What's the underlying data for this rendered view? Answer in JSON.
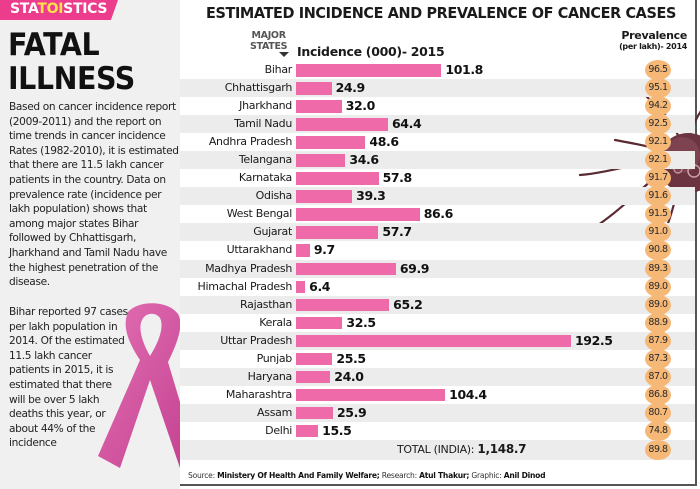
{
  "banner": {
    "pre": "STA",
    "mid": "TOI",
    "post": "STICS"
  },
  "headline": {
    "line1": "FATAL",
    "line2": "ILLNESS"
  },
  "body_text_1": "Based on cancer incidence report (2009-2011) and the report on time trends in cancer incidence Rates (1982-2010), it is estimated that there are 11.5 lakh cancer patients in the country. Data on prevalence rate (incidence per lakh population) shows that among major states Bihar followed by Chhattisgarh, Jharkhand and Tamil Nadu have the highest penetration of the disease.",
  "body_text_2": "Bihar reported 97 cases per lakh population in 2014. Of the estimated 11.5 lakh cancer patients in 2015, it is estimated that there will be over 5 lakh deaths this year, or about 44% of the incidence",
  "colors": {
    "banner": "#ec3c8c",
    "toi": "#ffe14d",
    "bar": "#ef6aa8",
    "prevalence_circle": "#f6b877",
    "stripe": "#ececec"
  },
  "chart_data": {
    "type": "bar",
    "title": "ESTIMATED INCIDENCE AND PREVALENCE OF CANCER CASES",
    "category_header_line1": "MAJOR",
    "category_header_line2": "STATES",
    "xlabel": "Incidence (000)- 2015",
    "secondary_label": "Prevalence",
    "secondary_sublabel": "(per lakh)- 2014",
    "categories": [
      "Bihar",
      "Chhattisgarh",
      "Jharkhand",
      "Tamil Nadu",
      "Andhra Pradesh",
      "Telangana",
      "Karnataka",
      "Odisha",
      "West Bengal",
      "Gujarat",
      "Uttarakhand",
      "Madhya Pradesh",
      "Himachal Pradesh",
      "Rajasthan",
      "Kerala",
      "Uttar Pradesh",
      "Punjab",
      "Haryana",
      "Maharashtra",
      "Assam",
      "Delhi"
    ],
    "series": [
      {
        "name": "Incidence (000)- 2015",
        "values": [
          101.8,
          24.9,
          32.0,
          64.4,
          48.6,
          34.6,
          57.8,
          39.3,
          86.6,
          57.7,
          9.7,
          69.9,
          6.4,
          65.2,
          32.5,
          192.5,
          25.5,
          24.0,
          104.4,
          25.9,
          15.5
        ],
        "labels": [
          "101.8",
          "24.9",
          "32.0",
          "64.4",
          "48.6",
          "34.6",
          "57.8",
          "39.3",
          "86.6",
          "57.7",
          "9.7",
          "69.9",
          "6.4",
          "65.2",
          "32.5",
          "192.5",
          "25.5",
          "24.0",
          "104.4",
          "25.9",
          "15.5"
        ]
      },
      {
        "name": "Prevalence (per lakh)- 2014",
        "values": [
          96.5,
          95.1,
          94.2,
          92.5,
          92.1,
          92.1,
          91.7,
          91.6,
          91.5,
          91.0,
          90.8,
          89.3,
          89.0,
          89.0,
          88.9,
          87.9,
          87.3,
          87.0,
          86.8,
          80.7,
          74.8
        ],
        "labels": [
          "96.5",
          "95.1",
          "94.2",
          "92.5",
          "92.1",
          "92.1",
          "91.7",
          "91.6",
          "91.5",
          "91.0",
          "90.8",
          "89.3",
          "89.0",
          "89.0",
          "88.9",
          "87.9",
          "87.3",
          "87.0",
          "86.8",
          "80.7",
          "74.8"
        ]
      }
    ],
    "total": {
      "label": "TOTAL (INDIA):",
      "incidence": "1,148.7",
      "prevalence": "89.8"
    },
    "xlim": [
      0,
      200
    ],
    "grid": false,
    "legend": "none"
  },
  "source": {
    "source_label": "Source:",
    "source_value": "Ministery Of Health And Family Welfare;",
    "research_label": "Research:",
    "research_value": "Atul Thakur;",
    "graphic_label": "Graphic:",
    "graphic_value": "Anil Dinod"
  }
}
